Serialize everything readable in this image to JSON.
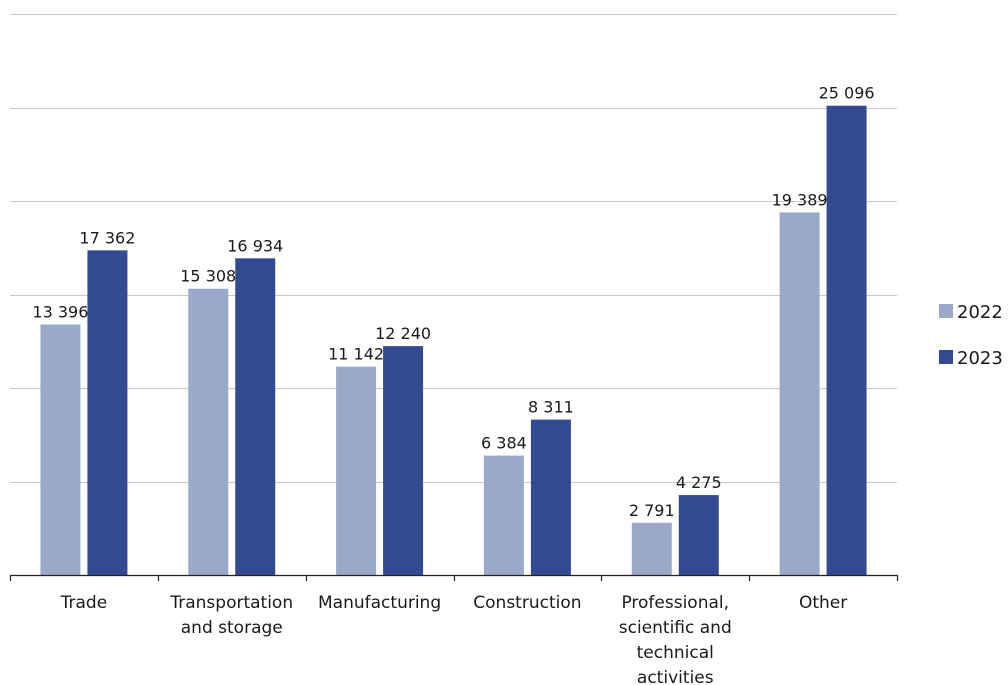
{
  "chart_data": {
    "type": "bar",
    "categories": [
      [
        "Trade"
      ],
      [
        "Transportation",
        "and storage"
      ],
      [
        "Manufacturing"
      ],
      [
        "Construction"
      ],
      [
        "Professional,",
        "scientific and",
        "technical",
        "activities"
      ],
      [
        "Other"
      ]
    ],
    "series": [
      {
        "name": "2022",
        "color": "#9aa8ca",
        "values": [
          13396,
          15308,
          11142,
          6384,
          2791,
          19389
        ],
        "labels": [
          "13 396",
          "15 308",
          "11 142",
          "6 384",
          "2 791",
          "19 389"
        ]
      },
      {
        "name": "2023",
        "color": "#324a92",
        "values": [
          17362,
          16934,
          12240,
          8311,
          4275,
          25096
        ],
        "labels": [
          "17 362",
          "16 934",
          "12 240",
          "8 311",
          "4 275",
          "25 096"
        ]
      }
    ],
    "ylim": [
      0,
      30000
    ],
    "y_gridlines": [
      5000,
      10000,
      15000,
      20000,
      25000,
      30000
    ],
    "y_tick_labels_shown": false,
    "grid": true,
    "legend_position": "right"
  }
}
